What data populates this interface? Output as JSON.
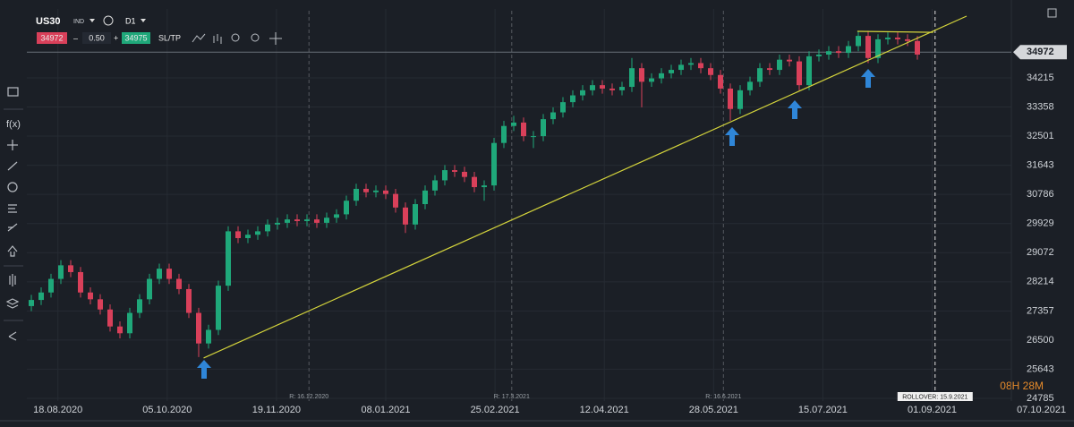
{
  "toolbar": {
    "symbol": "US30",
    "symbol_type": "IND",
    "timeframe": "D1",
    "bid": "34972",
    "lot": "0.50",
    "ask": "34975",
    "sltp": "SL/TP"
  },
  "sidebar": {
    "fx": "f(x)"
  },
  "chart_data": {
    "type": "candlestick",
    "open": [
      27500,
      27680,
      27900,
      28300,
      28700,
      28500,
      27900,
      27700,
      27400,
      26900,
      26700,
      27300,
      27700,
      28300,
      28600,
      28300,
      28000,
      27300,
      26400,
      26800,
      28100,
      29700,
      29500,
      29600,
      29700,
      29900,
      29950,
      30050,
      30000,
      30050,
      29950,
      30100,
      30200,
      30600,
      30950,
      30850,
      30900,
      30800,
      30400,
      29900,
      30500,
      30900,
      31200,
      31500,
      31450,
      31300,
      31000,
      31050,
      32300,
      32800,
      32900,
      32500,
      32500,
      33000,
      33200,
      33500,
      33700,
      33850,
      34000,
      33900,
      33850,
      33950,
      34500,
      34100,
      34200,
      34350,
      34450,
      34600,
      34650,
      34500,
      34300,
      33900,
      33300,
      33850,
      34100,
      34500,
      34450,
      34750,
      34700,
      34000,
      34850,
      34900,
      35000,
      34950,
      35150,
      35450,
      34800,
      35350,
      35400,
      35350,
      35300
    ],
    "high": [
      27830,
      28050,
      28450,
      28850,
      28850,
      28650,
      28050,
      27850,
      27550,
      27050,
      27450,
      27850,
      28450,
      28750,
      28750,
      28450,
      28150,
      27450,
      26950,
      28250,
      29850,
      29850,
      29750,
      29850,
      30050,
      30100,
      30200,
      30200,
      30200,
      30200,
      30250,
      30350,
      30750,
      31100,
      31100,
      31050,
      31050,
      30950,
      30550,
      30650,
      31050,
      31350,
      31650,
      31650,
      31600,
      31450,
      31200,
      32450,
      32950,
      33100,
      33050,
      32650,
      33150,
      33350,
      33650,
      33850,
      34000,
      34150,
      34150,
      34050,
      34100,
      34800,
      34650,
      34350,
      34500,
      34600,
      34750,
      34800,
      34800,
      34650,
      34450,
      34050,
      34000,
      34250,
      34650,
      34650,
      34900,
      34900,
      34850,
      35000,
      35050,
      35150,
      35150,
      35300,
      35600,
      35600,
      35500,
      35550,
      35550,
      35500,
      35450
    ],
    "low": [
      27350,
      27530,
      27750,
      28150,
      28350,
      27750,
      27550,
      27250,
      26750,
      26550,
      26550,
      27150,
      27550,
      28150,
      28150,
      27850,
      27150,
      26000,
      26250,
      26650,
      27950,
      29350,
      29350,
      29450,
      29550,
      29750,
      29800,
      29850,
      29850,
      29800,
      29800,
      29950,
      30050,
      30450,
      30700,
      30700,
      30650,
      30250,
      29650,
      29750,
      30350,
      30750,
      31050,
      31300,
      31150,
      30850,
      30600,
      30900,
      32150,
      32650,
      32350,
      32150,
      32350,
      32850,
      33050,
      33350,
      33550,
      33700,
      33750,
      33700,
      33700,
      33800,
      33350,
      33950,
      34050,
      34200,
      34300,
      34450,
      34350,
      34150,
      33750,
      32950,
      33150,
      33700,
      33950,
      34300,
      34300,
      34550,
      33850,
      33850,
      34700,
      34750,
      34800,
      34800,
      35000,
      34650,
      34650,
      35200,
      35200,
      35150,
      34750
    ],
    "close": [
      27680,
      27900,
      28300,
      28700,
      28500,
      27900,
      27700,
      27400,
      26900,
      26700,
      27300,
      27700,
      28300,
      28600,
      28300,
      28000,
      27300,
      26400,
      26800,
      28100,
      29700,
      29500,
      29600,
      29700,
      29900,
      29950,
      30050,
      30000,
      30050,
      29950,
      30100,
      30200,
      30600,
      30950,
      30850,
      30900,
      30800,
      30400,
      29900,
      30500,
      30900,
      31200,
      31500,
      31450,
      31300,
      31000,
      31050,
      32300,
      32800,
      32900,
      32500,
      32500,
      33000,
      33200,
      33500,
      33700,
      33850,
      34000,
      33900,
      33850,
      33950,
      34500,
      34100,
      34200,
      34350,
      34450,
      34600,
      34650,
      34500,
      34300,
      33900,
      33300,
      33850,
      34100,
      34500,
      34450,
      34750,
      34700,
      34000,
      34850,
      34900,
      35000,
      34950,
      35150,
      35450,
      34800,
      35350,
      35400,
      35350,
      35300,
      34900
    ],
    "up_color": "#1fa87a",
    "down_color": "#d9405a",
    "xlim": [
      -0.5,
      104
    ],
    "xticks": [
      {
        "value": 2.7,
        "label": "18.08.2020"
      },
      {
        "value": 13.8,
        "label": "05.10.2020"
      },
      {
        "value": 24.9,
        "label": "19.11.2020"
      },
      {
        "value": 36,
        "label": "08.01.2021"
      },
      {
        "value": 47.1,
        "label": "25.02.2021"
      },
      {
        "value": 58.2,
        "label": "12.04.2021"
      },
      {
        "value": 69.3,
        "label": "28.05.2021"
      },
      {
        "value": 80.4,
        "label": "15.07.2021"
      },
      {
        "value": 91.5,
        "label": "01.09.2021"
      },
      {
        "value": 102.6,
        "label": "07.10.2021"
      }
    ],
    "ylim": [
      24258,
      36243
    ],
    "yticks": [
      34215,
      33358,
      32501,
      31643,
      30786,
      29929,
      29072,
      28214,
      27357,
      26500,
      25643,
      24785
    ],
    "grid": true,
    "current_price": 34972,
    "markers": [
      {
        "value": 28.2,
        "label": "R: 16.12.2020"
      },
      {
        "value": 48.8,
        "label": "R: 17.3.2021"
      },
      {
        "value": 70.3,
        "label": "R: 16.6.2021"
      }
    ],
    "rollover": {
      "value": 91.8,
      "label": "ROLLOVER: 15.9.2021"
    },
    "countdown": "08H 28M",
    "trendlines": [
      {
        "x": [
          17.5,
          95
        ],
        "y": [
          25971,
          36032
        ],
        "color": "#d4d43c"
      },
      {
        "x": [
          83.9,
          91.6
        ],
        "y": [
          35585,
          35555
        ],
        "color": "#d4d43c"
      }
    ]
  }
}
